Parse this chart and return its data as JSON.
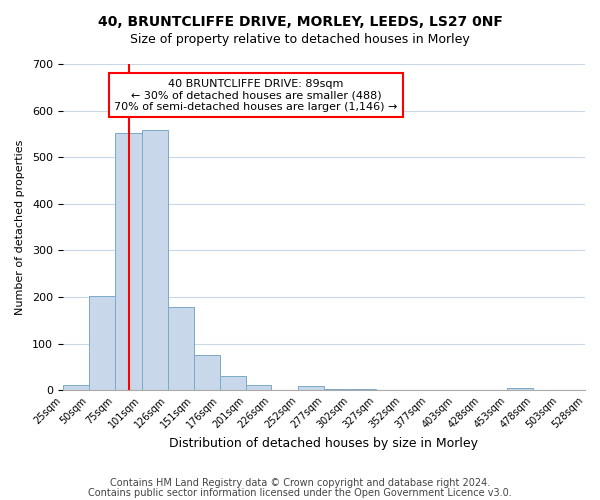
{
  "title": "40, BRUNTCLIFFE DRIVE, MORLEY, LEEDS, LS27 0NF",
  "subtitle": "Size of property relative to detached houses in Morley",
  "xlabel": "Distribution of detached houses by size in Morley",
  "ylabel": "Number of detached properties",
  "bar_edges": [
    25,
    50,
    75,
    101,
    126,
    151,
    176,
    201,
    226,
    252,
    277,
    302,
    327,
    352,
    377,
    403,
    428,
    453,
    478,
    503,
    528
  ],
  "bar_heights": [
    12,
    203,
    553,
    558,
    178,
    75,
    30,
    12,
    0,
    8,
    3,
    3,
    0,
    0,
    0,
    0,
    0,
    4,
    0,
    0
  ],
  "tick_labels": [
    "25sqm",
    "50sqm",
    "75sqm",
    "101sqm",
    "126sqm",
    "151sqm",
    "176sqm",
    "201sqm",
    "226sqm",
    "252sqm",
    "277sqm",
    "302sqm",
    "327sqm",
    "352sqm",
    "377sqm",
    "403sqm",
    "428sqm",
    "453sqm",
    "478sqm",
    "503sqm",
    "528sqm"
  ],
  "bar_color": "#c8d8ea",
  "bar_edge_color": "#7aaac8",
  "vline_x": 89,
  "vline_color": "red",
  "ylim": [
    0,
    700
  ],
  "yticks": [
    0,
    100,
    200,
    300,
    400,
    500,
    600,
    700
  ],
  "annotation_title": "40 BRUNTCLIFFE DRIVE: 89sqm",
  "annotation_line1": "← 30% of detached houses are smaller (488)",
  "annotation_line2": "70% of semi-detached houses are larger (1,146) →",
  "annotation_box_color": "white",
  "annotation_box_edge": "red",
  "footer1": "Contains HM Land Registry data © Crown copyright and database right 2024.",
  "footer2": "Contains public sector information licensed under the Open Government Licence v3.0.",
  "bg_color": "white",
  "plot_bg_color": "white",
  "grid_color": "#c8d8e8"
}
